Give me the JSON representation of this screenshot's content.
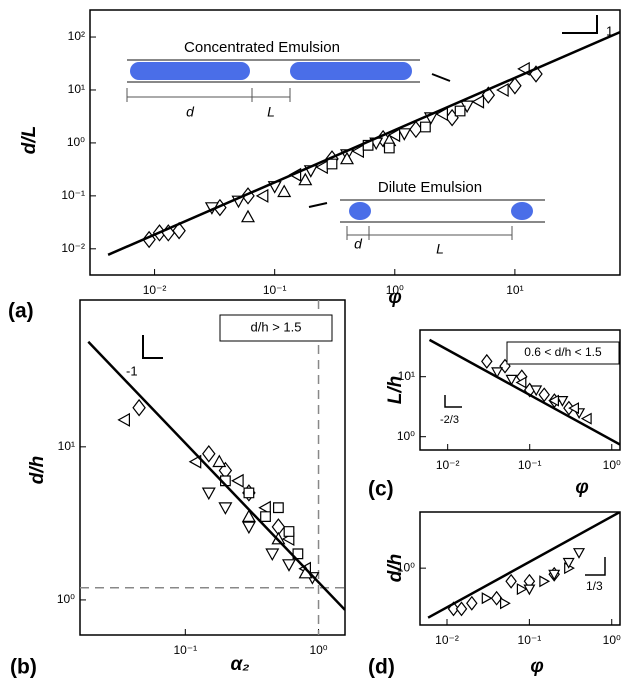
{
  "chart_data": [
    {
      "type": "scatter",
      "panel_label": "(a)",
      "xlabel": "φ",
      "ylabel": "d/L",
      "log_x": true,
      "log_y": true,
      "xlim": [
        0.0029,
        75
      ],
      "ylim": [
        0.0032,
        324
      ],
      "xticks": [
        {
          "value": 0.01,
          "label": "10⁻²"
        },
        {
          "value": 0.1,
          "label": "10⁻¹"
        },
        {
          "value": 1,
          "label": "10⁰"
        },
        {
          "value": 10,
          "label": "10¹"
        }
      ],
      "yticks": [
        {
          "value": 0.01,
          "label": "10⁻²"
        },
        {
          "value": 0.1,
          "label": "10⁻¹"
        },
        {
          "value": 1,
          "label": "10⁰"
        },
        {
          "value": 10,
          "label": "10¹"
        },
        {
          "value": 100,
          "label": "10²"
        }
      ],
      "annotations": [
        "Concentrated Emulsion",
        "d",
        "L",
        "Dilute Emulsion",
        "d",
        "L"
      ],
      "slope_label": "1",
      "series": [
        {
          "marker": "diamond",
          "color": "#000000",
          "x": [
            0.009,
            0.011,
            0.013,
            0.016,
            0.035,
            0.06,
            0.3,
            0.8,
            1.5,
            3,
            6,
            10,
            15
          ],
          "values": [
            0.015,
            0.02,
            0.02,
            0.022,
            0.06,
            0.1,
            0.5,
            1.2,
            1.8,
            3,
            8,
            12,
            20
          ]
        },
        {
          "marker": "triangle-down",
          "color": "#000000",
          "x": [
            0.03,
            0.05,
            0.1,
            0.2,
            0.4,
            0.7,
            1.2,
            2,
            4
          ],
          "values": [
            0.06,
            0.08,
            0.15,
            0.3,
            0.6,
            1.0,
            1.5,
            3,
            5
          ]
        },
        {
          "marker": "triangle-left",
          "color": "#000000",
          "x": [
            0.08,
            0.15,
            0.25,
            0.5,
            1,
            2.5,
            5,
            8,
            12
          ],
          "values": [
            0.1,
            0.25,
            0.35,
            0.7,
            1.4,
            3.5,
            6,
            10,
            25
          ]
        },
        {
          "marker": "triangle-up",
          "color": "#000000",
          "x": [
            0.06,
            0.12,
            0.18,
            0.4,
            0.9
          ],
          "values": [
            0.04,
            0.12,
            0.2,
            0.5,
            1.1
          ]
        },
        {
          "marker": "square",
          "color": "#000000",
          "x": [
            0.3,
            0.6,
            0.9,
            1.8,
            3.5
          ],
          "values": [
            0.4,
            0.9,
            0.8,
            2,
            4
          ]
        },
        {
          "marker": "line",
          "color": "#000000",
          "x": [
            0.0041,
            75
          ],
          "values": [
            0.0077,
            124
          ]
        }
      ]
    },
    {
      "type": "scatter",
      "panel_label": "(b)",
      "xlabel": "α₂",
      "ylabel": "d/h",
      "log_x": true,
      "log_y": true,
      "xlim": [
        0.0162,
        1.58
      ],
      "ylim": [
        0.59,
        91
      ],
      "xticks": [
        {
          "value": 0.1,
          "label": "10⁻¹"
        },
        {
          "value": 1,
          "label": "10⁰"
        }
      ],
      "yticks": [
        {
          "value": 1,
          "label": "10⁰"
        },
        {
          "value": 10,
          "label": "10¹"
        }
      ],
      "box_label": "d/h > 1.5",
      "slope_label": "-1",
      "ref_x": 1,
      "ref_y": 1.2,
      "series": [
        {
          "marker": "diamond",
          "color": "#000000",
          "x": [
            0.045,
            0.15,
            0.2,
            0.3,
            0.5
          ],
          "values": [
            18,
            9,
            7,
            5,
            3
          ]
        },
        {
          "marker": "triangle-left",
          "color": "#000000",
          "x": [
            0.035,
            0.12,
            0.25,
            0.4,
            0.6,
            0.8
          ],
          "values": [
            15,
            8,
            6,
            4,
            2.5,
            1.6
          ]
        },
        {
          "marker": "square",
          "color": "#000000",
          "x": [
            0.2,
            0.3,
            0.4,
            0.5,
            0.6,
            0.7
          ],
          "values": [
            6,
            5,
            3.5,
            4,
            2.8,
            2
          ]
        },
        {
          "marker": "triangle-down",
          "color": "#000000",
          "x": [
            0.15,
            0.2,
            0.3,
            0.45,
            0.6,
            0.9
          ],
          "values": [
            5,
            4,
            3,
            2,
            1.7,
            1.4
          ]
        },
        {
          "marker": "triangle-up",
          "color": "#000000",
          "x": [
            0.18,
            0.3,
            0.5,
            0.8
          ],
          "values": [
            8,
            3.5,
            2.5,
            1.5
          ]
        },
        {
          "marker": "line",
          "color": "#000000",
          "x": [
            0.0187,
            1.58
          ],
          "values": [
            48.5,
            0.86
          ]
        }
      ]
    },
    {
      "type": "scatter",
      "panel_label": "(c)",
      "xlabel": "φ",
      "ylabel": "L/h",
      "log_x": true,
      "log_y": true,
      "xlim": [
        0.0046,
        1.26
      ],
      "ylim": [
        0.6,
        60
      ],
      "xticks": [
        {
          "value": 0.01,
          "label": "10⁻²"
        },
        {
          "value": 0.1,
          "label": "10⁻¹"
        },
        {
          "value": 1,
          "label": "10⁰"
        }
      ],
      "yticks": [
        {
          "value": 1,
          "label": "10⁰"
        },
        {
          "value": 10,
          "label": "10¹"
        }
      ],
      "box_label": "0.6 < d/h < 1.5",
      "slope_label": "-2/3",
      "series": [
        {
          "marker": "diamond",
          "color": "#000000",
          "x": [
            0.03,
            0.05,
            0.08,
            0.1,
            0.15,
            0.2,
            0.3
          ],
          "values": [
            18,
            15,
            10,
            6,
            5,
            4,
            3
          ]
        },
        {
          "marker": "triangle-down",
          "color": "#000000",
          "x": [
            0.04,
            0.06,
            0.12,
            0.25,
            0.4
          ],
          "values": [
            12,
            9,
            6,
            4,
            2.5
          ]
        },
        {
          "marker": "triangle-left",
          "color": "#000000",
          "x": [
            0.08,
            0.2,
            0.35,
            0.5
          ],
          "values": [
            8,
            4,
            3,
            2
          ]
        },
        {
          "marker": "line",
          "color": "#000000",
          "x": [
            0.006,
            1.26
          ],
          "values": [
            41,
            0.74
          ]
        }
      ]
    },
    {
      "type": "scatter",
      "panel_label": "(d)",
      "xlabel": "φ",
      "ylabel": "d/h",
      "log_x": true,
      "log_y": true,
      "xlim": [
        0.0047,
        1.26
      ],
      "ylim": [
        0.38,
        2.6
      ],
      "xticks": [
        {
          "value": 0.01,
          "label": "10⁻²"
        },
        {
          "value": 0.1,
          "label": "10⁻¹"
        },
        {
          "value": 1,
          "label": "10⁰"
        }
      ],
      "yticks": [
        {
          "value": 1,
          "label": "10⁰"
        }
      ],
      "slope_label": "1/3",
      "series": [
        {
          "marker": "diamond",
          "color": "#000000",
          "x": [
            0.012,
            0.015,
            0.02,
            0.04,
            0.06,
            0.1,
            0.2
          ],
          "values": [
            0.5,
            0.5,
            0.55,
            0.6,
            0.8,
            0.8,
            0.9
          ]
        },
        {
          "marker": "triangle-right",
          "color": "#000000",
          "x": [
            0.03,
            0.05,
            0.08,
            0.15,
            0.3
          ],
          "values": [
            0.6,
            0.55,
            0.7,
            0.8,
            1.0
          ]
        },
        {
          "marker": "triangle-down",
          "color": "#000000",
          "x": [
            0.1,
            0.2,
            0.3,
            0.4
          ],
          "values": [
            0.7,
            0.9,
            1.1,
            1.3
          ]
        },
        {
          "marker": "line",
          "color": "#000000",
          "x": [
            0.0059,
            1.26
          ],
          "values": [
            0.43,
            2.6
          ]
        }
      ]
    }
  ]
}
